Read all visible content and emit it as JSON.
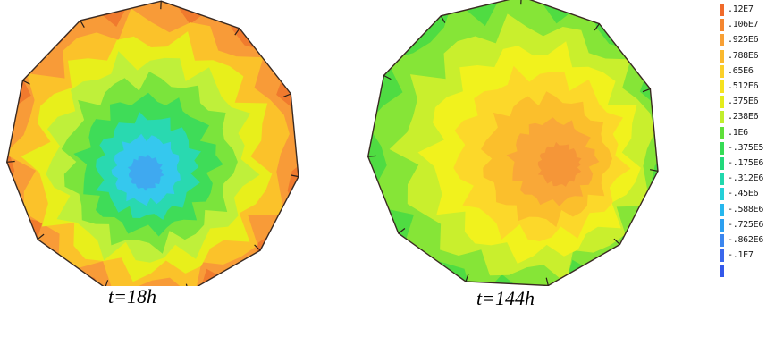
{
  "panels": [
    {
      "caption": "t=18h",
      "colors": [
        "#f07a2e",
        "#f89b38",
        "#fbc22a",
        "#e8ef1b",
        "#bff03a",
        "#7be43c",
        "#3fdc58",
        "#29d9b0",
        "#35c8ee",
        "#3fa9f0"
      ]
    },
    {
      "caption": "t=144h",
      "colors": [
        "#4fdc42",
        "#86e537",
        "#c9ef2d",
        "#f1f21d",
        "#fcd82a",
        "#fbbf2c",
        "#f9a838",
        "#f59638"
      ]
    }
  ],
  "legend": {
    "labels": [
      ".12E7",
      ".106E7",
      ".925E6",
      ".788E6",
      ".65E6",
      ".512E6",
      ".375E6",
      ".238E6",
      ".1E6",
      "-.375E5",
      "-.175E6",
      "-.312E6",
      "-.45E6",
      "-.588E6",
      "-.725E6",
      "-.862E6",
      "-.1E7"
    ],
    "colors": [
      "#f06a2a",
      "#f4862f",
      "#f8a035",
      "#fab92e",
      "#fbd02a",
      "#f6e21f",
      "#e4ec1c",
      "#c1ee2c",
      "#5fe03a",
      "#35dc55",
      "#22d97c",
      "#21d8ad",
      "#24d0d8",
      "#27b7ee",
      "#2c9ff0",
      "#3b86ef",
      "#3a67ec"
    ],
    "bottom_color": "#3358ea"
  }
}
